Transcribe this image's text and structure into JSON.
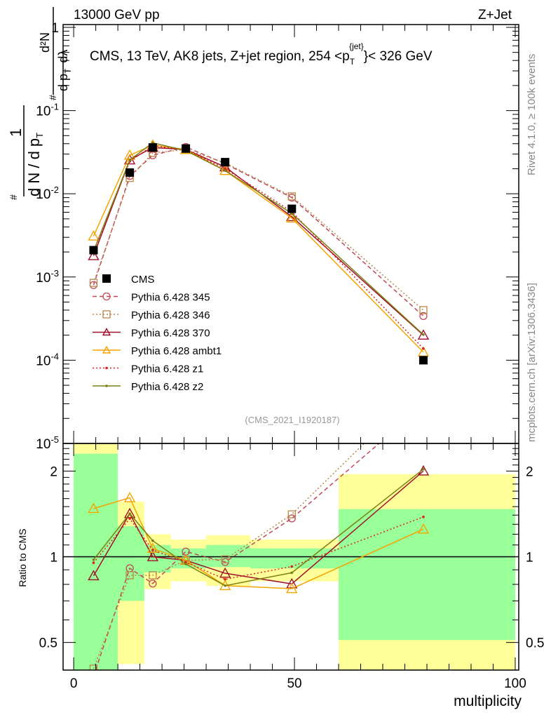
{
  "header": {
    "left": "13000 GeV pp",
    "right": "Z+Jet"
  },
  "side_labels": {
    "rivet": "Rivet 4.1.0, ≥ 100k events",
    "mcplots": "mcplots.cern.ch [arXiv:1306.3436]"
  },
  "chart_data": {
    "type": "line",
    "title": "CMS, 13 TeV, AK8 jets, Z+jet region, 254 <p_T^{jet}< 326 GeV",
    "title_parts": {
      "main": "CMS, 13 TeV, AK8 jets, Z+jet region, 254 <p",
      "sub": "T",
      "sup": "{jet}",
      "tail": "}< 326 GeV"
    },
    "analysis_id": "(CMS_2021_I1920187)",
    "ylabel": "1/dN/dp_T # d²N/dp_T dλ",
    "ylabel_parts": {
      "a": "1",
      "b": "d N / d p",
      "c": "T",
      "d": "#",
      "e": "d²N",
      "f": "d p",
      "g": "T",
      "h": "dλ",
      "i": "#"
    },
    "xlabel": "multiplicity",
    "ratio_ylabel": "Ratio to CMS",
    "xlim": [
      -2.4,
      100.8
    ],
    "ylim": [
      1e-05,
      1.08
    ],
    "yscale": "log",
    "ratio_ylim": [
      0.4,
      2.5
    ],
    "x_ticks": [
      0,
      50,
      100
    ],
    "y_tick_labels": [
      {
        "v": 1,
        "t": "1"
      },
      {
        "v": 0.1,
        "t": "10^-1"
      },
      {
        "v": 0.01,
        "t": "10^-2"
      },
      {
        "v": 0.001,
        "t": "10^-3"
      },
      {
        "v": 0.0001,
        "t": "10^-4"
      },
      {
        "v": 1e-05,
        "t": "10^-5"
      }
    ],
    "ratio_ticks": [
      {
        "v": 2,
        "t": "2"
      },
      {
        "v": 1,
        "t": "1"
      },
      {
        "v": 0.5,
        "t": "0.5"
      }
    ],
    "bins": [
      [
        0,
        10
      ],
      [
        10,
        16
      ],
      [
        16,
        22
      ],
      [
        22,
        30
      ],
      [
        30,
        40
      ],
      [
        40,
        60
      ],
      [
        60,
        100
      ]
    ],
    "x": [
      4.5,
      12.7,
      17.9,
      25.4,
      34.3,
      49.4,
      79.2
    ],
    "reference": {
      "name": "CMS",
      "values": [
        0.0021,
        0.018,
        0.036,
        0.035,
        0.024,
        0.0066,
        0.0001
      ],
      "stat_band": [
        [
          0.3,
          2.3
        ],
        [
          0.7,
          1.28
        ],
        [
          0.88,
          1.1
        ],
        [
          0.91,
          1.07
        ],
        [
          0.92,
          1.1
        ],
        [
          0.91,
          1.07
        ],
        [
          0.51,
          1.47
        ]
      ],
      "total_band": [
        [
          0.3,
          2.6
        ],
        [
          0.42,
          1.56
        ],
        [
          0.77,
          1.2
        ],
        [
          0.82,
          1.15
        ],
        [
          0.79,
          1.19
        ],
        [
          0.82,
          1.15
        ],
        [
          0.3,
          1.95
        ]
      ],
      "color": "#000000"
    },
    "series": [
      {
        "name": "Pythia 6.428 345",
        "color": "#c04858",
        "dash": "6,4",
        "marker": "circle",
        "values": [
          0.0008,
          0.0164,
          0.029,
          0.0365,
          0.023,
          0.009,
          0.00034
        ]
      },
      {
        "name": "Pythia 6.428 346",
        "color": "#b8864a",
        "dash": "2,3",
        "marker": "square",
        "values": [
          0.00085,
          0.0155,
          0.031,
          0.034,
          0.0235,
          0.0093,
          0.0004
        ]
      },
      {
        "name": "Pythia 6.428 370",
        "color": "#a0102a",
        "dash": "",
        "marker": "triangle",
        "values": [
          0.0018,
          0.0255,
          0.036,
          0.034,
          0.021,
          0.0053,
          0.0002
        ]
      },
      {
        "name": "Pythia 6.428 ambt1",
        "color": "#f5a300",
        "dash": "",
        "marker": "triangle",
        "values": [
          0.0031,
          0.029,
          0.0385,
          0.034,
          0.019,
          0.0051,
          0.000125
        ]
      },
      {
        "name": "Pythia 6.428 z1",
        "color": "#e02020",
        "dash": "2,3",
        "marker": "dot",
        "values": [
          0.002,
          0.0245,
          0.038,
          0.0335,
          0.02,
          0.0061,
          0.000138
        ]
      },
      {
        "name": "Pythia 6.428 z2",
        "color": "#7a8010",
        "dash": "",
        "marker": "dot",
        "values": [
          0.00205,
          0.0255,
          0.041,
          0.033,
          0.019,
          0.0058,
          0.000203
        ]
      }
    ],
    "colors": {
      "stat_band": "#99ff99",
      "total_band": "#ffff99"
    },
    "legend_position": "bottom-left"
  }
}
